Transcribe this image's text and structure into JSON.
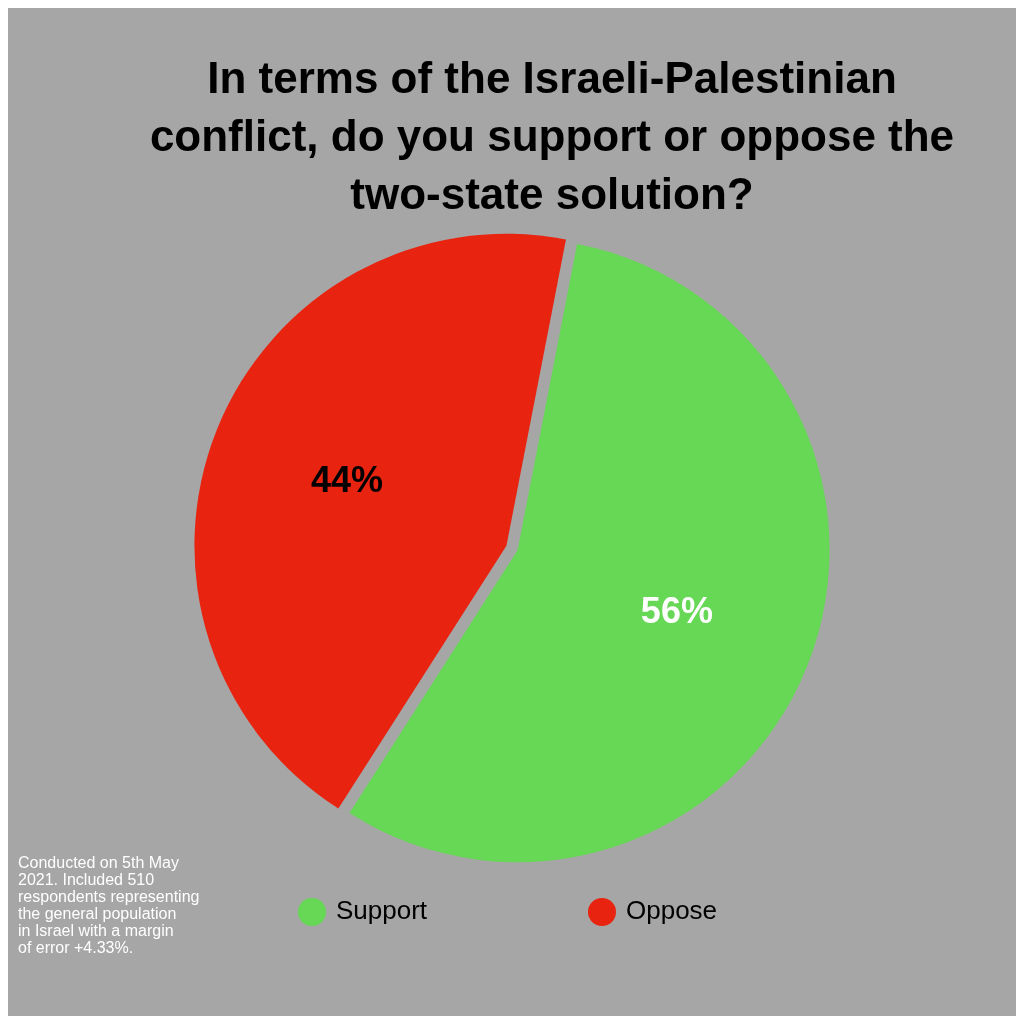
{
  "chart_data": {
    "type": "pie",
    "title": "In terms of the Israeli-Palestinian conflict, do you support or oppose the two-state solution?",
    "categories": [
      "Support",
      "Oppose"
    ],
    "values": [
      56,
      44
    ],
    "colors": [
      "#66d855",
      "#e8230f"
    ],
    "value_labels": [
      "56%",
      "44%"
    ],
    "legend": "bottom",
    "annotations": [
      "Conducted on 5th May 2021. Included 510 respondents representing the general population in Israel with a margin of error +4.33%."
    ]
  }
}
